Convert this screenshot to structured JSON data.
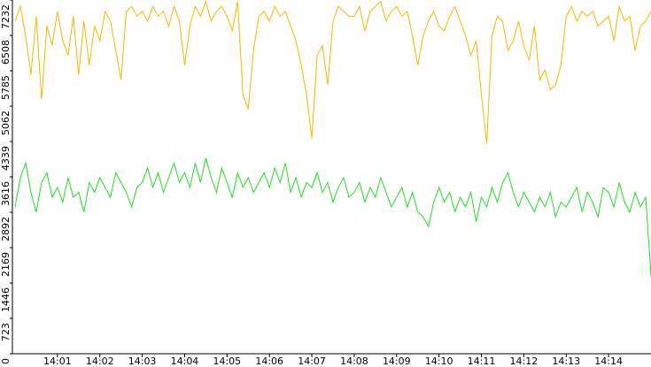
{
  "chart_data": {
    "type": "line",
    "x": [
      0,
      0.125,
      0.25,
      0.375,
      0.5,
      0.625,
      0.75,
      0.875,
      1,
      1.125,
      1.25,
      1.375,
      1.5,
      1.625,
      1.75,
      1.875,
      2,
      2.125,
      2.25,
      2.375,
      2.5,
      2.625,
      2.75,
      2.875,
      3,
      3.125,
      3.25,
      3.375,
      3.5,
      3.625,
      3.75,
      3.875,
      4,
      4.125,
      4.25,
      4.375,
      4.5,
      4.625,
      4.75,
      4.875,
      5,
      5.125,
      5.25,
      5.375,
      5.5,
      5.625,
      5.75,
      5.875,
      6,
      6.125,
      6.25,
      6.375,
      6.5,
      6.625,
      6.75,
      6.875,
      7,
      7.125,
      7.25,
      7.375,
      7.5,
      7.625,
      7.75,
      7.875,
      8,
      8.125,
      8.25,
      8.375,
      8.5,
      8.625,
      8.75,
      8.875,
      9,
      9.125,
      9.25,
      9.375,
      9.5,
      9.625,
      9.75,
      9.875,
      10,
      10.125,
      10.25,
      10.375,
      10.5,
      10.625,
      10.75,
      10.875,
      11,
      11.125,
      11.25,
      11.375,
      11.5,
      11.625,
      11.75,
      11.875,
      12,
      12.125,
      12.25,
      12.375,
      12.5,
      12.625,
      12.75,
      12.875,
      13,
      13.125,
      13.25,
      13.375,
      13.5,
      13.625,
      13.75,
      13.875,
      14,
      14.125,
      14.25,
      14.375,
      14.5,
      14.625,
      14.75,
      14.875,
      15
    ],
    "series": [
      {
        "color": "#f5b800",
        "values": [
          6800,
          7100,
          6500,
          5700,
          6900,
          5200,
          6700,
          6300,
          7000,
          6400,
          6100,
          6900,
          5700,
          6800,
          5900,
          6700,
          6400,
          7000,
          6800,
          6200,
          5600,
          7000,
          7100,
          6900,
          7000,
          6800,
          7100,
          6900,
          7000,
          6700,
          7100,
          6800,
          5900,
          6700,
          7100,
          6900,
          7200,
          6800,
          7000,
          7100,
          6900,
          6600,
          7200,
          5300,
          5000,
          6200,
          6900,
          7000,
          6800,
          7100,
          6900,
          7000,
          6700,
          6400,
          5900,
          5300,
          4400,
          6100,
          6300,
          5500,
          6800,
          7100,
          7000,
          6900,
          6900,
          7100,
          6600,
          7000,
          7100,
          7200,
          6800,
          7000,
          7100,
          6900,
          7000,
          6500,
          5900,
          6500,
          6800,
          7000,
          6700,
          6600,
          6900,
          7100,
          6800,
          6500,
          6100,
          6400,
          5300,
          4300,
          6500,
          6900,
          6800,
          6200,
          6400,
          6800,
          6300,
          6000,
          6700,
          5600,
          5800,
          5400,
          5500,
          5900,
          6900,
          7100,
          6800,
          7000,
          6900,
          7000,
          6700,
          6800,
          6900,
          6400,
          7100,
          6800,
          6900,
          6200,
          6700,
          6800,
          7000
        ]
      },
      {
        "color": "#22dd22",
        "values": [
          3000,
          3600,
          3900,
          3300,
          2900,
          3500,
          3700,
          3200,
          3400,
          3100,
          3600,
          3200,
          3300,
          2900,
          3500,
          3300,
          3600,
          3400,
          3200,
          3700,
          3500,
          3300,
          3000,
          3400,
          3500,
          3800,
          3400,
          3700,
          3300,
          3600,
          3900,
          3500,
          3700,
          3400,
          3900,
          3500,
          4000,
          3600,
          3300,
          3800,
          3500,
          3200,
          3700,
          3400,
          3600,
          3300,
          3500,
          3700,
          3400,
          3800,
          3500,
          3900,
          3300,
          3600,
          3200,
          3500,
          3400,
          3700,
          3300,
          3500,
          3100,
          3400,
          3600,
          3200,
          3300,
          3500,
          3100,
          3400,
          3200,
          3600,
          3300,
          3000,
          3200,
          3400,
          3000,
          3300,
          2900,
          2800,
          2600,
          3100,
          3400,
          3100,
          3300,
          2900,
          3200,
          3000,
          3300,
          2700,
          3200,
          3000,
          3400,
          3100,
          3500,
          3700,
          3300,
          3000,
          3300,
          3100,
          2900,
          3200,
          3000,
          3300,
          2800,
          3100,
          3000,
          3200,
          3400,
          2900,
          3300,
          3100,
          2800,
          3400,
          3300,
          3000,
          3500,
          3100,
          2900,
          3300,
          3000,
          3200,
          1600
        ]
      }
    ],
    "xlim": [
      0,
      15
    ],
    "xticks": [
      {
        "value": 1,
        "label": "14:01"
      },
      {
        "value": 2,
        "label": "14:02"
      },
      {
        "value": 3,
        "label": "14:03"
      },
      {
        "value": 4,
        "label": "14:04"
      },
      {
        "value": 5,
        "label": "14:05"
      },
      {
        "value": 6,
        "label": "14:06"
      },
      {
        "value": 7,
        "label": "14:07"
      },
      {
        "value": 8,
        "label": "14:08"
      },
      {
        "value": 9,
        "label": "14:09"
      },
      {
        "value": 10,
        "label": "14:10"
      },
      {
        "value": 11,
        "label": "14:11"
      },
      {
        "value": 12,
        "label": "14:12"
      },
      {
        "value": 13,
        "label": "14:13"
      },
      {
        "value": 14,
        "label": "14:14"
      }
    ],
    "ylim": [
      0,
      7232
    ],
    "yticks": [
      0,
      723,
      1446,
      2169,
      2892,
      3616,
      4339,
      5062,
      5785,
      6508,
      7232
    ]
  }
}
